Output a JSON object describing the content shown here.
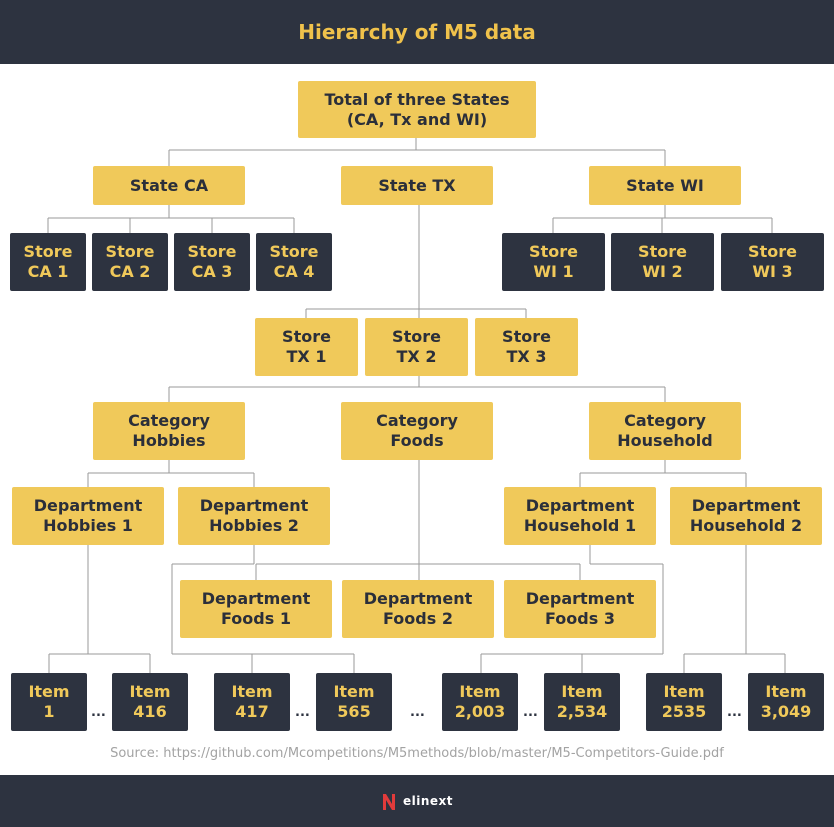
{
  "title": "Hierarchy of M5 data",
  "nodes": {
    "total": "Total of three States\n(CA, Tx and WI)",
    "state_ca": "State CA",
    "state_tx": "State TX",
    "state_wi": "State WI",
    "store_ca1": "Store\nCA 1",
    "store_ca2": "Store\nCA 2",
    "store_ca3": "Store\nCA 3",
    "store_ca4": "Store\nCA 4",
    "store_wi1": "Store\nWI 1",
    "store_wi2": "Store\nWI 2",
    "store_wi3": "Store\nWI 3",
    "store_tx1": "Store\nTX 1",
    "store_tx2": "Store\nTX 2",
    "store_tx3": "Store\nTX 3",
    "cat_hobbies": "Category\nHobbies",
    "cat_foods": "Category\nFoods",
    "cat_household": "Category\nHousehold",
    "dept_hobbies1": "Department\nHobbies 1",
    "dept_hobbies2": "Department\nHobbies 2",
    "dept_household1": "Department\nHousehold 1",
    "dept_household2": "Department\nHousehold 2",
    "dept_foods1": "Department\nFoods 1",
    "dept_foods2": "Department\nFoods 2",
    "dept_foods3": "Department\nFoods 3",
    "item_1": "Item\n1",
    "item_416": "Item\n416",
    "item_417": "Item\n417",
    "item_565": "Item\n565",
    "item_2003": "Item\n2,003",
    "item_2534": "Item\n2,534",
    "item_2535": "Item\n2535",
    "item_3049": "Item\n3,049"
  },
  "ellipsis": "...",
  "source": "Source: https://github.com/Mcompetitions/M5methods/blob/master/M5-Competitors-Guide.pdf",
  "brand": "elinext",
  "colors": {
    "dark": "#2d3340",
    "yellow": "#f0c95a",
    "line": "#9a9a9a"
  }
}
